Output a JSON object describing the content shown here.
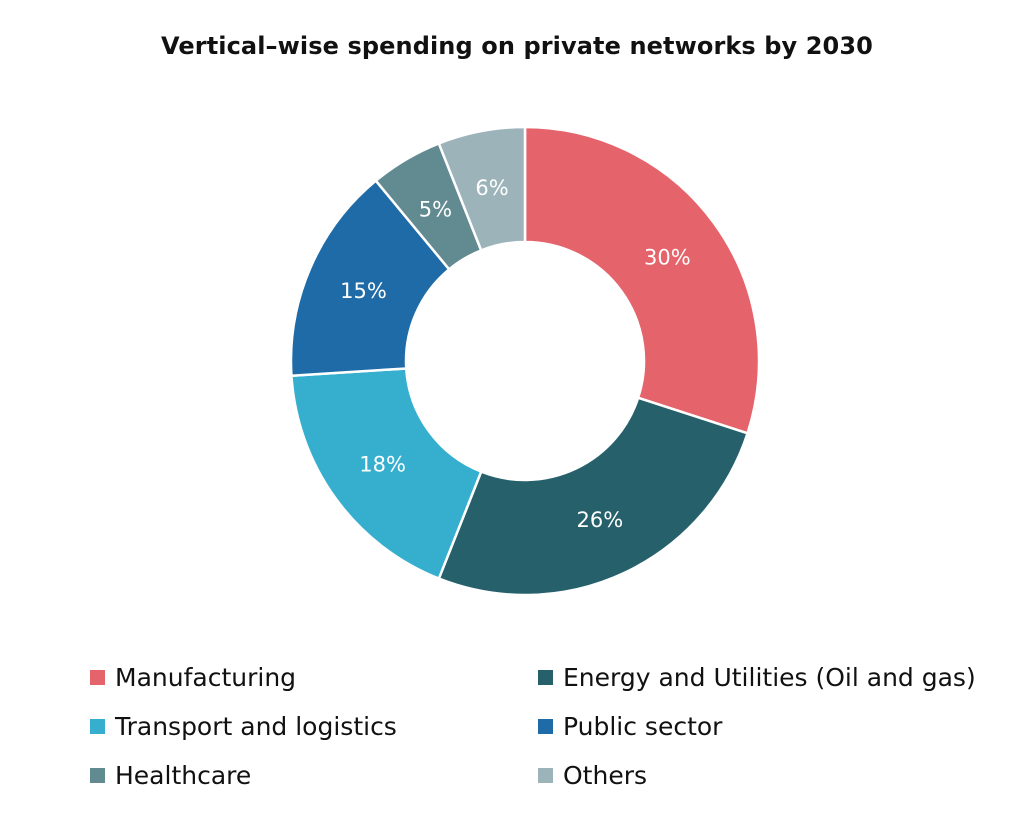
{
  "chart_data": {
    "type": "donut",
    "title": "Vertical–wise spending on private networks by 2030",
    "unit": "%",
    "slices": [
      {
        "label": "Manufacturing",
        "value": 30,
        "value_label": "30%",
        "color": "#E5646B"
      },
      {
        "label": "Energy and Utilities (Oil and gas)",
        "value": 26,
        "value_label": "26%",
        "color": "#25606B"
      },
      {
        "label": "Transport and logistics",
        "value": 18,
        "value_label": "18%",
        "color": "#36AFCF"
      },
      {
        "label": "Public sector",
        "value": 15,
        "value_label": "15%",
        "color": "#1E6BA7"
      },
      {
        "label": "Healthcare",
        "value": 5,
        "value_label": "5%",
        "color": "#628A91"
      },
      {
        "label": "Others",
        "value": 6,
        "value_label": "6%",
        "color": "#9CB3BA"
      }
    ],
    "legend_position": "bottom"
  }
}
